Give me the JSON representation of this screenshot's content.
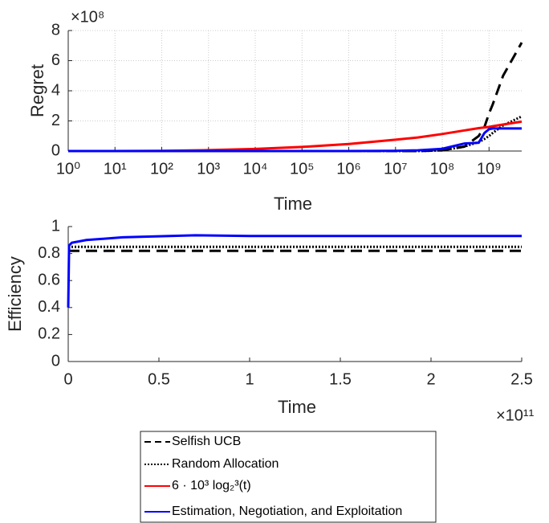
{
  "chart_data": [
    {
      "type": "line",
      "ylabel": "Regret",
      "xlabel": "Time",
      "multiplier": "×10⁸",
      "xscale": "log",
      "grid": true,
      "legend": "below",
      "x": [
        1,
        10,
        100,
        1000,
        10000,
        100000,
        1000000,
        10000000,
        30000000,
        100000000,
        300000000,
        600000000,
        800000000,
        1000000000,
        1200000000,
        2000000000,
        5000000000
      ],
      "xlim": [
        1,
        5000000000
      ],
      "xticks": [
        {
          "value": 1,
          "label": "10⁰"
        },
        {
          "value": 10,
          "label": "10¹"
        },
        {
          "value": 100,
          "label": "10²"
        },
        {
          "value": 1000,
          "label": "10³"
        },
        {
          "value": 10000,
          "label": "10⁴"
        },
        {
          "value": 100000,
          "label": "10⁵"
        },
        {
          "value": 1000000,
          "label": "10⁶"
        },
        {
          "value": 10000000,
          "label": "10⁷"
        },
        {
          "value": 100000000,
          "label": "10⁸"
        },
        {
          "value": 1000000000,
          "label": "10⁹"
        }
      ],
      "ylim": [
        0,
        8
      ],
      "yticks": [
        0,
        2,
        4,
        6,
        8
      ],
      "series": [
        {
          "name": "Selfish UCB",
          "color": "#000000",
          "style": "dashed",
          "values": [
            0,
            0,
            0,
            0,
            0,
            0,
            0,
            0,
            0,
            0.05,
            0.3,
            1.0,
            1.6,
            2.5,
            3.1,
            5.0,
            7.2
          ]
        },
        {
          "name": "Random Allocation",
          "color": "#000000",
          "style": "dotted",
          "values": [
            0,
            0,
            0,
            0,
            0,
            0,
            0,
            0,
            0,
            0.05,
            0.3,
            0.6,
            0.8,
            1.0,
            1.2,
            1.7,
            2.3
          ]
        },
        {
          "name": "6 · 10³ log₂³(t)",
          "color": "#ff0000",
          "style": "solid",
          "values": [
            0,
            0.002,
            0.018,
            0.06,
            0.14,
            0.27,
            0.47,
            0.75,
            0.9,
            1.13,
            1.37,
            1.52,
            1.57,
            1.6,
            1.65,
            1.76,
            1.95
          ]
        },
        {
          "name": "Estimation, Negotiation, and Exploitation",
          "color": "#0000ff",
          "style": "solid",
          "values": [
            0,
            0,
            0,
            0,
            0,
            0,
            0,
            0.01,
            0.05,
            0.15,
            0.5,
            0.55,
            1.2,
            1.45,
            1.5,
            1.5,
            1.5
          ]
        }
      ]
    },
    {
      "type": "line",
      "ylabel": "Efficiency",
      "xlabel": "Time",
      "multiplier": "×10¹¹",
      "xscale": "linear",
      "grid": false,
      "x": [
        0,
        0.005,
        0.02,
        0.1,
        0.3,
        0.7,
        1,
        2.5
      ],
      "xlim": [
        0,
        2.5
      ],
      "xticks": [
        0,
        0.5,
        1,
        1.5,
        2,
        2.5
      ],
      "ylim": [
        0,
        1
      ],
      "yticks": [
        0,
        0.2,
        0.4,
        0.6,
        0.8,
        1
      ],
      "series": [
        {
          "color": "#000000",
          "style": "dashed",
          "values": [
            0.82,
            0.82,
            0.82,
            0.82,
            0.82,
            0.82,
            0.82,
            0.82
          ]
        },
        {
          "color": "#000000",
          "style": "dotted",
          "values": [
            0.85,
            0.85,
            0.85,
            0.85,
            0.85,
            0.85,
            0.85,
            0.85
          ]
        },
        {
          "color": "#0000ff",
          "style": "solid",
          "values": [
            0.4,
            0.86,
            0.88,
            0.9,
            0.92,
            0.935,
            0.93,
            0.93
          ]
        }
      ]
    }
  ]
}
